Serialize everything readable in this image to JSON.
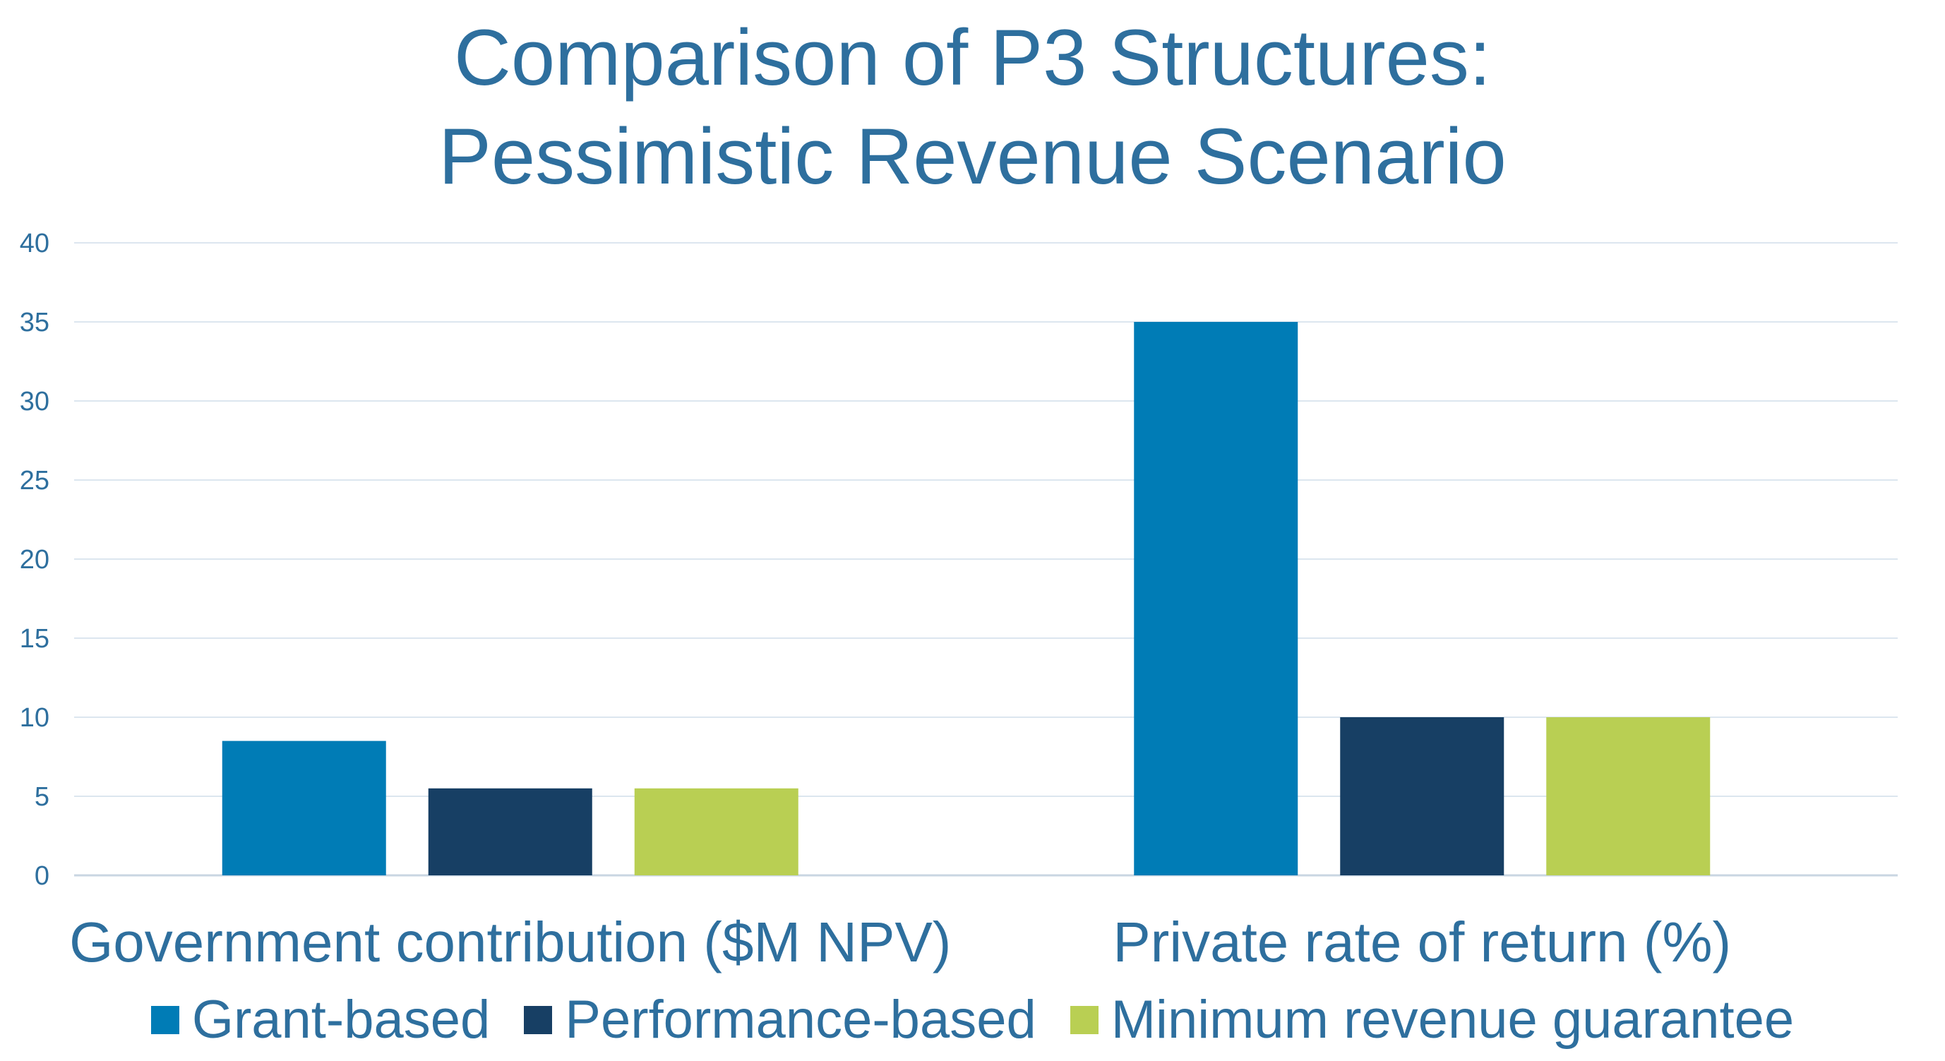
{
  "chart_data": {
    "type": "bar",
    "title": [
      "Comparison of P3 Structures:",
      "Pessimistic Revenue Scenario"
    ],
    "categories": [
      "Government contribution ($M NPV)",
      "Private rate of return (%)"
    ],
    "series": [
      {
        "name": "Grant-based",
        "color": "#007CB6",
        "values": [
          8.5,
          35
        ]
      },
      {
        "name": "Performance-based",
        "color": "#173F64",
        "values": [
          5.5,
          10
        ]
      },
      {
        "name": "Minimum revenue guarantee",
        "color": "#B9CF53",
        "values": [
          5.5,
          10
        ]
      }
    ],
    "ylim": [
      0,
      40
    ],
    "yticks": [
      "0",
      "5",
      "10",
      "15",
      "20",
      "25",
      "30",
      "35",
      "40"
    ],
    "grid": true,
    "legend": "bottom",
    "xlabel": "",
    "ylabel": ""
  }
}
